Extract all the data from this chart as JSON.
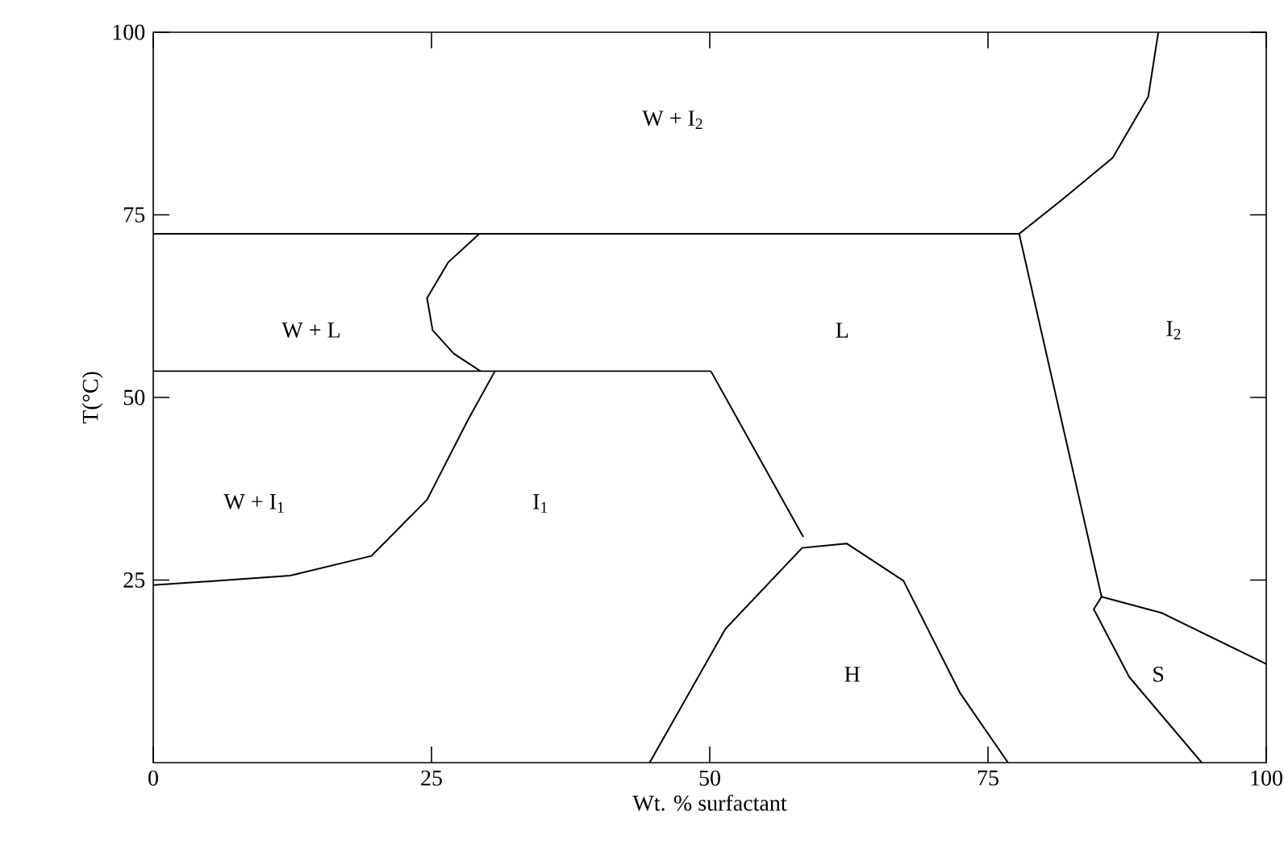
{
  "chart_data": {
    "type": "line",
    "xlabel": "Wt. % surfactant",
    "ylabel": "T(°C)",
    "xlim": [
      0,
      100
    ],
    "ylim": [
      0,
      100
    ],
    "xticks": [
      0,
      25,
      50,
      75,
      100
    ],
    "yticks": [
      25,
      50,
      75,
      100
    ],
    "grid": false,
    "marker": "none",
    "line_style": "solid",
    "series": [
      {
        "color": "#000000",
        "x": [
          0,
          77.8
        ],
        "values": [
          72.4,
          72.4
        ]
      },
      {
        "color": "#000000",
        "x": [
          77.8,
          82,
          86.2,
          89.4,
          90.3
        ],
        "values": [
          72.4,
          77.5,
          82.8,
          91.2,
          100
        ]
      },
      {
        "color": "#000000",
        "x": [
          77.8,
          85.2
        ],
        "values": [
          72.4,
          22.7
        ]
      },
      {
        "color": "#000000",
        "x": [
          29.3,
          26.5,
          24.6,
          25.1,
          27,
          29.4
        ],
        "values": [
          72.4,
          68.5,
          63.6,
          59.2,
          56,
          53.6
        ]
      },
      {
        "color": "#000000",
        "x": [
          0,
          50.1
        ],
        "values": [
          53.6,
          53.6
        ]
      },
      {
        "color": "#000000",
        "x": [
          50.1,
          58.4
        ],
        "values": [
          53.6,
          30.9
        ]
      },
      {
        "color": "#000000",
        "x": [
          0,
          12.3,
          19.6,
          24.6,
          28.3,
          30.7
        ],
        "values": [
          24.3,
          25.6,
          28.3,
          36,
          47,
          53.6
        ]
      },
      {
        "color": "#000000",
        "x": [
          44.6,
          51.4,
          58.3,
          62.3,
          67.4,
          72.5,
          76.8
        ],
        "values": [
          0,
          18.3,
          29.4,
          30,
          24.9,
          9.5,
          0
        ]
      },
      {
        "color": "#000000",
        "x": [
          100,
          90.6,
          85.2,
          84.5,
          87.7,
          94.2
        ],
        "values": [
          13.5,
          20.5,
          22.7,
          21,
          11.7,
          0
        ]
      }
    ],
    "annotations": [
      "W + I$_{2}$",
      "W + L",
      "L",
      "I$_{2}$",
      "W + I$_{1}$",
      "I$_{1}$",
      "H",
      "S"
    ]
  }
}
